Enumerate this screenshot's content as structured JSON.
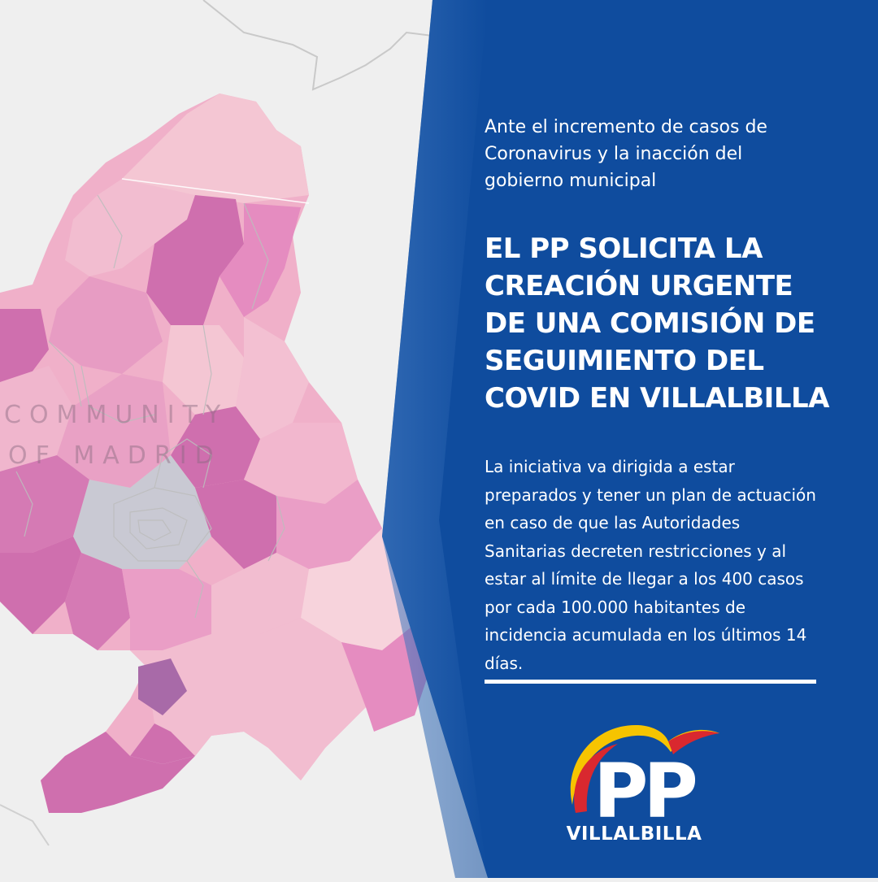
{
  "intro": "Ante el incremento de casos de Coronavirus y la inacción del gobierno municipal",
  "headline": "EL PP SOLICITA LA CREACIÓN URGENTE DE UNA COMISIÓN DE SEGUIMIENTO DEL COVID EN VILLALBILLA",
  "body": "La iniciativa va dirigida a estar preparados y tener un plan de actuación en caso de que las Autoridades Sanitarias decreten restricciones y al estar al límite de llegar a los 400 casos por cada 100.000 habitantes de incidencia acumulada en los últimos 14 días.",
  "logo": {
    "letters": "PP",
    "text": "VILLALBILLA"
  },
  "map_watermark": [
    "COMMUNITY",
    "OF MADRID"
  ],
  "colors": {
    "panel_blue": "#0f4c9e",
    "map_background": "#efefef",
    "map_light_pink": "#f4c6d3",
    "map_mid_pink": "#e79cc3",
    "map_dark_pink": "#cf6fae",
    "map_purple": "#a86aa8",
    "logo_red": "#d9282f",
    "logo_yellow": "#f6c400"
  }
}
